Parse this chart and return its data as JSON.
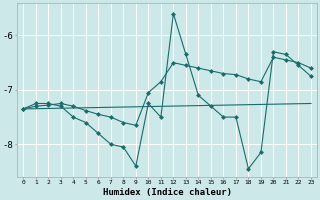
{
  "xlabel": "Humidex (Indice chaleur)",
  "bg_color": "#cce8e8",
  "grid_color": "#b0d8d8",
  "line_color": "#1a6b6b",
  "xlim": [
    -0.5,
    23.5
  ],
  "ylim": [
    -8.6,
    -5.4
  ],
  "yticks": [
    -8,
    -7,
    -6
  ],
  "xticks": [
    0,
    1,
    2,
    3,
    4,
    5,
    6,
    7,
    8,
    9,
    10,
    11,
    12,
    13,
    14,
    15,
    16,
    17,
    18,
    19,
    20,
    21,
    22,
    23
  ],
  "series1_x": [
    0,
    1,
    2,
    3,
    4,
    5,
    6,
    7,
    8,
    9,
    10,
    11,
    12,
    13,
    14,
    15,
    16,
    17,
    18,
    19,
    20,
    21,
    22,
    23
  ],
  "series1_y": [
    -7.35,
    -7.25,
    -7.25,
    -7.3,
    -7.5,
    -7.6,
    -7.8,
    -8.0,
    -8.05,
    -8.4,
    -7.25,
    -7.5,
    -5.6,
    -6.35,
    -7.1,
    -7.3,
    -7.5,
    -7.5,
    -8.45,
    -8.15,
    -6.3,
    -6.35,
    -6.55,
    -6.75
  ],
  "series2_x": [
    0,
    1,
    2,
    3,
    4,
    5,
    6,
    7,
    8,
    9,
    10,
    11,
    12,
    13,
    14,
    15,
    16,
    17,
    18,
    19,
    20,
    21,
    22,
    23
  ],
  "series2_y": [
    -7.35,
    -7.3,
    -7.28,
    -7.25,
    -7.3,
    -7.38,
    -7.45,
    -7.5,
    -7.6,
    -7.65,
    -7.05,
    -6.85,
    -6.5,
    -6.55,
    -6.6,
    -6.65,
    -6.7,
    -6.72,
    -6.8,
    -6.85,
    -6.4,
    -6.45,
    -6.5,
    -6.6
  ],
  "trend_x": [
    0,
    23
  ],
  "trend_y": [
    -7.35,
    -7.25
  ]
}
